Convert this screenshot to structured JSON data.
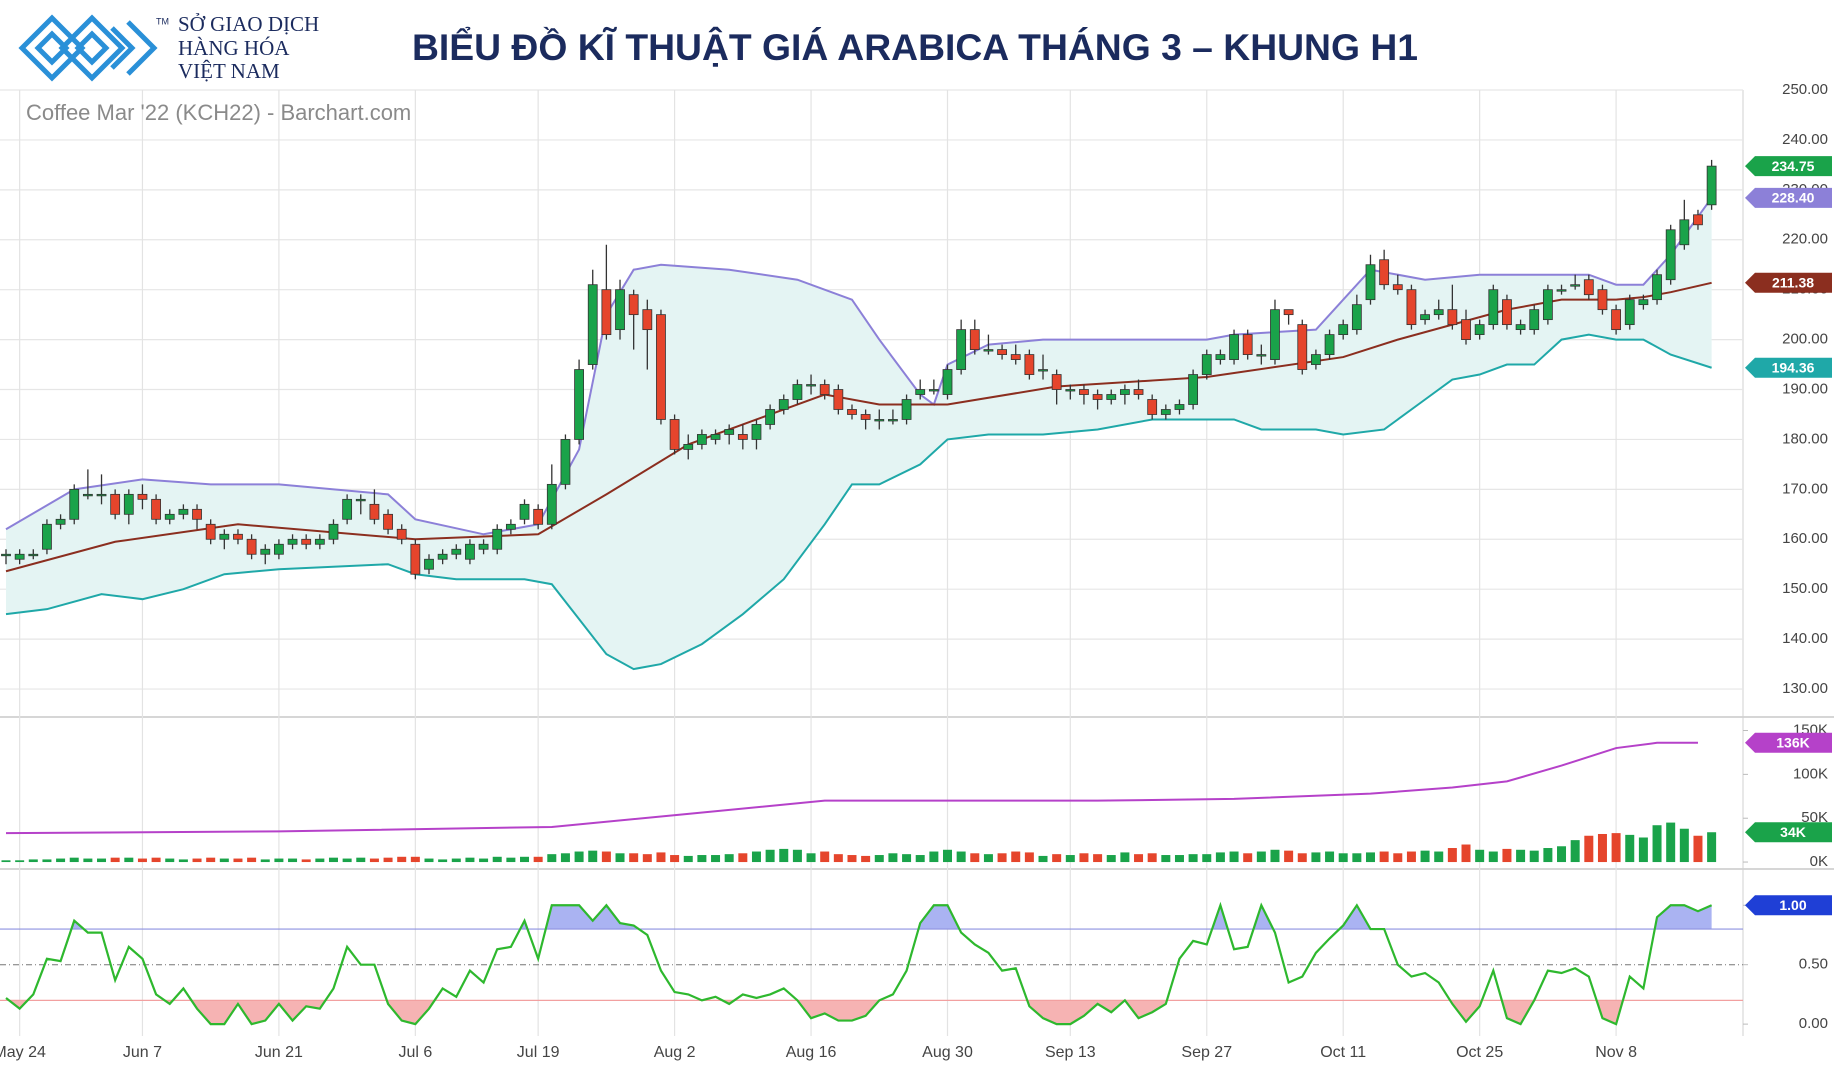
{
  "header": {
    "logo_lines": [
      "SỞ GIAO DỊCH",
      "HÀNG HÓA",
      "VIỆT NAM"
    ],
    "logo_mark": "TM",
    "title": "BIỂU ĐỒ KĨ THUẬT GIÁ ARABICA THÁNG 3 – KHUNG H1"
  },
  "chart_data": [
    {
      "type": "candlestick",
      "subtitle": "Coffee Mar '22 (KCH22) - Barchart.com",
      "up_color": "#1aa34a",
      "down_color": "#e5452c",
      "last": 234.75,
      "grid": true,
      "xlim": [
        -0.44,
        127.3
      ],
      "ylim": [
        125,
        250
      ],
      "yticks": [
        {
          "value": 130,
          "label": "130.00"
        },
        {
          "value": 140,
          "label": "140.00"
        },
        {
          "value": 150,
          "label": "150.00"
        },
        {
          "value": 160,
          "label": "160.00"
        },
        {
          "value": 170,
          "label": "170.00"
        },
        {
          "value": 180,
          "label": "180.00"
        },
        {
          "value": 190,
          "label": "190.00"
        },
        {
          "value": 200,
          "label": "200.00"
        },
        {
          "value": 210,
          "label": "210.00"
        },
        {
          "value": 220,
          "label": "220.00"
        },
        {
          "value": 230,
          "label": "230.00"
        },
        {
          "value": 240,
          "label": "240.00"
        },
        {
          "value": 250,
          "label": "250.00"
        }
      ],
      "open": [
        157,
        156,
        157,
        158,
        163,
        164,
        169,
        169,
        169,
        165,
        169,
        168,
        164,
        165,
        166,
        163,
        160,
        161,
        160,
        157,
        157,
        159,
        160,
        159,
        160,
        164,
        168,
        167,
        165,
        162,
        159,
        154,
        156,
        157,
        156,
        158,
        158,
        162,
        164,
        166,
        163,
        171,
        180,
        195,
        210,
        202,
        209,
        206,
        205,
        184,
        178,
        179,
        180,
        181,
        181,
        180,
        183,
        186,
        188,
        191,
        191,
        190,
        186,
        185,
        184,
        184,
        184,
        189,
        190,
        189,
        194,
        202,
        198,
        198,
        197,
        197,
        194,
        193,
        190,
        190,
        189,
        188,
        189,
        190,
        188,
        185,
        186,
        187,
        193,
        196,
        196,
        201,
        197,
        196,
        206,
        203,
        195,
        197,
        201,
        202,
        208,
        216,
        211,
        210,
        204,
        205,
        206,
        204,
        201,
        203,
        208,
        202,
        202,
        204,
        210,
        211,
        212,
        210,
        206,
        203,
        207,
        208,
        212,
        219,
        225,
        227
      ],
      "high": [
        158,
        158,
        158,
        164,
        165,
        171,
        174,
        173,
        170,
        170,
        171,
        169,
        166,
        167,
        167,
        164,
        162,
        162,
        161,
        159,
        160,
        161,
        161,
        161,
        164,
        169,
        169,
        170,
        166,
        163,
        160,
        157,
        158,
        159,
        160,
        160,
        163,
        164,
        168,
        167,
        175,
        181,
        196,
        214,
        219,
        212,
        210,
        208,
        206,
        185,
        181,
        182,
        182,
        183,
        183,
        184,
        187,
        189,
        192,
        193,
        192,
        191,
        187,
        186,
        186,
        186,
        189,
        192,
        192,
        195,
        204,
        204,
        201,
        199,
        199,
        198,
        197,
        194,
        191,
        191,
        190,
        190,
        191,
        192,
        189,
        187,
        188,
        194,
        198,
        198,
        202,
        202,
        199,
        208,
        206,
        204,
        198,
        202,
        204,
        209,
        217,
        218,
        213,
        211,
        206,
        208,
        211,
        206,
        204,
        211,
        209,
        204,
        207,
        211,
        211,
        213,
        213,
        211,
        207,
        209,
        209,
        214,
        223,
        228,
        226,
        236
      ],
      "low": [
        155,
        155,
        156,
        157,
        162,
        163,
        168,
        167,
        164,
        163,
        166,
        163,
        163,
        164,
        162,
        159,
        158,
        159,
        156,
        155,
        156,
        158,
        158,
        158,
        159,
        163,
        165,
        163,
        161,
        159,
        152,
        153,
        155,
        156,
        155,
        157,
        157,
        161,
        163,
        162,
        162,
        170,
        179,
        194,
        200,
        200,
        198,
        194,
        183,
        177,
        176,
        178,
        179,
        179,
        178,
        178,
        182,
        185,
        187,
        189,
        188,
        185,
        184,
        182,
        182,
        183,
        183,
        188,
        189,
        188,
        193,
        197,
        197,
        196,
        195,
        192,
        192,
        187,
        188,
        187,
        186,
        187,
        187,
        188,
        184,
        184,
        185,
        186,
        192,
        195,
        195,
        196,
        195,
        195,
        203,
        193,
        194,
        196,
        200,
        201,
        207,
        210,
        209,
        202,
        203,
        204,
        202,
        199,
        200,
        202,
        202,
        201,
        201,
        203,
        209,
        210,
        208,
        205,
        201,
        202,
        206,
        207,
        211,
        218,
        222,
        226
      ],
      "close": [
        157,
        157,
        157,
        163,
        164,
        170,
        169,
        169,
        165,
        169,
        168,
        164,
        165,
        166,
        164,
        160,
        161,
        160,
        157,
        158,
        159,
        160,
        159,
        160,
        163,
        168,
        168,
        164,
        162,
        160,
        153,
        156,
        157,
        158,
        159,
        159,
        162,
        163,
        167,
        163,
        171,
        180,
        194,
        211,
        201,
        210,
        205,
        202,
        184,
        178,
        179,
        181,
        181,
        182,
        180,
        183,
        186,
        188,
        191,
        191,
        189,
        186,
        185,
        184,
        184,
        184,
        188,
        190,
        190,
        194,
        202,
        198,
        198,
        197,
        196,
        193,
        194,
        190,
        190,
        189,
        188,
        189,
        190,
        189,
        185,
        186,
        187,
        193,
        197,
        197,
        201,
        197,
        197,
        206,
        205,
        194,
        197,
        201,
        203,
        207,
        215,
        211,
        210,
        203,
        205,
        206,
        203,
        200,
        203,
        210,
        203,
        203,
        206,
        210,
        210,
        211,
        209,
        206,
        202,
        208,
        208,
        213,
        222,
        224,
        223,
        234.75
      ],
      "band_fill": "#e4f4f3",
      "overlays": [
        {
          "color": "#8c80d8",
          "last": {
            "value": 228.4,
            "label": "228.40"
          },
          "x": [
            0,
            5,
            10,
            15,
            20,
            28,
            30,
            35,
            39,
            42,
            44,
            46,
            48,
            53,
            58,
            62,
            64,
            67,
            68,
            69,
            72,
            76,
            80,
            88,
            90,
            96,
            98,
            100,
            104,
            108,
            112,
            116,
            118,
            120,
            122,
            125
          ],
          "values": [
            162,
            170,
            172,
            171,
            171,
            169,
            164,
            161,
            163,
            178,
            205,
            214,
            215,
            214,
            212,
            208,
            200,
            189,
            187,
            195,
            199,
            200,
            200,
            200,
            201,
            202,
            208,
            214,
            212,
            213,
            213,
            213,
            211,
            211,
            217,
            228.4
          ]
        },
        {
          "color": "#8b2e1f",
          "last": 211.38,
          "x": [
            0,
            8,
            17,
            30,
            39,
            44,
            50,
            56,
            60,
            64,
            69,
            77,
            88,
            98,
            102,
            106,
            110,
            114,
            118,
            120,
            122,
            125
          ],
          "values": [
            153.6,
            159.5,
            163,
            160,
            161,
            169,
            179,
            185,
            189,
            187,
            187,
            190.6,
            192.5,
            196.5,
            200,
            203,
            206,
            208,
            208,
            208.5,
            209.5,
            211.38
          ]
        },
        {
          "color": "#1fa8a8",
          "last": 194.36,
          "x": [
            0,
            3,
            7,
            10,
            13,
            16,
            20,
            28,
            30,
            33,
            38,
            40,
            42,
            44,
            46,
            48,
            51,
            54,
            57,
            60,
            62,
            64,
            67,
            69,
            72,
            76,
            80,
            84,
            88,
            90,
            92,
            96,
            98,
            101,
            104,
            106,
            108,
            110,
            112,
            114,
            116,
            118,
            120,
            122,
            125
          ],
          "values": [
            145,
            146,
            149,
            148,
            150,
            153,
            154,
            155,
            153,
            152,
            152,
            151,
            144,
            137,
            134,
            135,
            139,
            145,
            152,
            163,
            171,
            171,
            175,
            180,
            181,
            181,
            182,
            184,
            184,
            184,
            182,
            182,
            181,
            182,
            188,
            192,
            193,
            195,
            195,
            200,
            201,
            200,
            200,
            197,
            194.36
          ]
        }
      ]
    },
    {
      "type": "volume",
      "up_color": "#1aa34a",
      "down_color": "#e5452c",
      "last": {
        "value": 34,
        "label": "34K"
      },
      "xlim": [
        -0.44,
        127.3
      ],
      "ylim": [
        -4.5,
        162
      ],
      "yticks": [
        {
          "value": 0,
          "label": "0K"
        },
        {
          "value": 50,
          "label": "50K"
        },
        {
          "value": 100,
          "label": "100K"
        },
        {
          "value": 150,
          "label": "150K"
        }
      ],
      "values": [
        2,
        2,
        3,
        3,
        4,
        5,
        4,
        4,
        5,
        5,
        4,
        5,
        4,
        3,
        4,
        5,
        4,
        4,
        5,
        3,
        4,
        4,
        3,
        4,
        5,
        4,
        5,
        4,
        5,
        6,
        6,
        4,
        3,
        4,
        5,
        4,
        6,
        5,
        6,
        6,
        9,
        10,
        12,
        13,
        12,
        10,
        10,
        9,
        11,
        8,
        7,
        8,
        8,
        9,
        10,
        12,
        14,
        15,
        14,
        10,
        12,
        9,
        8,
        7,
        8,
        10,
        9,
        8,
        12,
        14,
        12,
        10,
        9,
        10,
        12,
        11,
        7,
        9,
        8,
        10,
        9,
        8,
        11,
        9,
        10,
        8,
        8,
        9,
        9,
        11,
        12,
        10,
        12,
        14,
        13,
        10,
        11,
        12,
        10,
        10,
        11,
        12,
        10,
        12,
        13,
        12,
        16,
        20,
        14,
        12,
        15,
        14,
        13,
        16,
        18,
        25,
        30,
        32,
        33,
        31,
        28,
        42,
        45,
        38,
        30,
        34
      ],
      "average": {
        "color": "#b541c9",
        "last": {
          "value": 136,
          "label": "136K"
        },
        "x": [
          0,
          20,
          40,
          50,
          60,
          70,
          80,
          90,
          100,
          106,
          110,
          114,
          118,
          121,
          124
        ],
        "values": [
          33,
          35,
          40,
          55,
          70,
          70,
          70,
          72,
          78,
          85,
          92,
          110,
          130,
          136,
          136
        ]
      }
    },
    {
      "type": "stochastic",
      "color": "#2eb82e",
      "last": {
        "value": 1,
        "label": "1.00"
      },
      "last_color": "#1f3fd6",
      "overbought": {
        "value": 0.8,
        "color": "#8e92e0",
        "fill": "#aab3f2"
      },
      "oversold": {
        "value": 0.2,
        "color": "#f2a0a0",
        "fill": "#f6b3b3"
      },
      "midline": {
        "value": 0.5,
        "color": "#777"
      },
      "xlim": [
        -0.44,
        127.3
      ],
      "ylim": [
        -0.1,
        1.28
      ],
      "yticks": [
        {
          "value": 0,
          "label": "0.00"
        },
        {
          "value": 0.5,
          "label": "0.50"
        },
        {
          "value": 1,
          "label": "1.00"
        }
      ],
      "xticks": [
        {
          "value": 1,
          "label": "May 24"
        },
        {
          "value": 10,
          "label": "Jun 7"
        },
        {
          "value": 20,
          "label": "Jun 21"
        },
        {
          "value": 30,
          "label": "Jul 6"
        },
        {
          "value": 39,
          "label": "Jul 19"
        },
        {
          "value": 49,
          "label": "Aug 2"
        },
        {
          "value": 59,
          "label": "Aug 16"
        },
        {
          "value": 69,
          "label": "Aug 30"
        },
        {
          "value": 78,
          "label": "Sep 13"
        },
        {
          "value": 88,
          "label": "Sep 27"
        },
        {
          "value": 98,
          "label": "Oct 11"
        },
        {
          "value": 108,
          "label": "Oct 25"
        },
        {
          "value": 118,
          "label": "Nov 8"
        }
      ],
      "values": [
        0.22,
        0.13,
        0.25,
        0.55,
        0.53,
        0.87,
        0.77,
        0.77,
        0.37,
        0.65,
        0.55,
        0.25,
        0.17,
        0.3,
        0.13,
        0,
        0,
        0.17,
        0,
        0.03,
        0.17,
        0.03,
        0.15,
        0.13,
        0.3,
        0.65,
        0.5,
        0.5,
        0.17,
        0.03,
        0,
        0.13,
        0.3,
        0.23,
        0.45,
        0.35,
        0.63,
        0.65,
        0.87,
        0.55,
        1,
        1,
        1,
        0.87,
        1,
        0.85,
        0.83,
        0.75,
        0.45,
        0.27,
        0.25,
        0.2,
        0.23,
        0.17,
        0.25,
        0.22,
        0.25,
        0.3,
        0.2,
        0.05,
        0.09,
        0.03,
        0.03,
        0.07,
        0.2,
        0.25,
        0.45,
        0.85,
        1,
        1,
        0.77,
        0.67,
        0.6,
        0.45,
        0.47,
        0.15,
        0.05,
        0,
        0,
        0.07,
        0.17,
        0.1,
        0.2,
        0.05,
        0.1,
        0.17,
        0.55,
        0.7,
        0.67,
        1,
        0.63,
        0.65,
        1,
        0.77,
        0.35,
        0.4,
        0.6,
        0.72,
        0.83,
        1,
        0.8,
        0.8,
        0.5,
        0.4,
        0.43,
        0.35,
        0.17,
        0.02,
        0.15,
        0.45,
        0.05,
        0,
        0.2,
        0.45,
        0.43,
        0.47,
        0.4,
        0.05,
        0,
        0.4,
        0.3,
        0.9,
        1,
        1,
        0.95,
        1
      ]
    }
  ]
}
